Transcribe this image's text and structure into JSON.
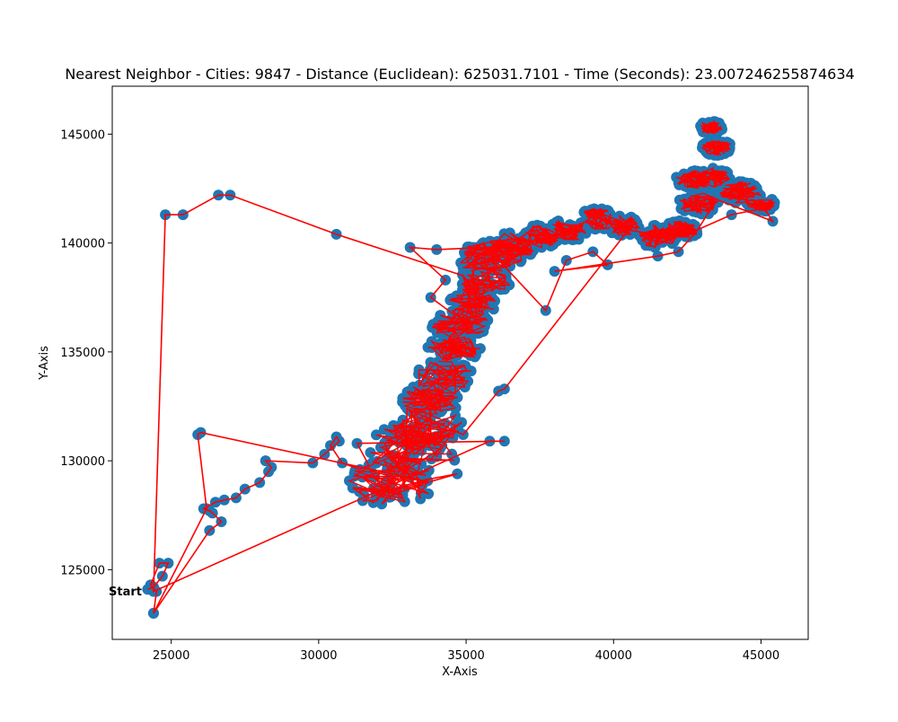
{
  "chart_data": {
    "type": "line",
    "title": "Nearest Neighbor - Cities: 9847 - Distance (Euclidean): 625031.7101 - Time (Seconds): 23.007246255874634",
    "xlabel": "X-Axis",
    "ylabel": "Y-Axis",
    "xlim": [
      23000,
      46600
    ],
    "ylim": [
      121800,
      147200
    ],
    "xticks": [
      25000,
      30000,
      35000,
      40000,
      45000
    ],
    "yticks": [
      125000,
      130000,
      135000,
      140000,
      145000
    ],
    "grid": false,
    "legend": "none",
    "annotations": [
      {
        "text": "Start",
        "x": 24100,
        "y": 123900
      }
    ],
    "colors": {
      "points": "#1f77b4",
      "route": "#ff0000",
      "axes": "#000000",
      "background": "#ffffff"
    },
    "series": [
      {
        "role": "route-outliers",
        "x": [
          24200,
          24400,
          24700,
          24900,
          24600,
          24300,
          24500,
          24400,
          26300,
          26700,
          26400,
          26300,
          26100,
          26500,
          26800,
          27200,
          27500,
          28000,
          28300,
          28400,
          28200,
          29800,
          30200,
          30700,
          30600,
          30400,
          30800,
          31400,
          31700,
          31300,
          36300,
          35800,
          24400,
          24800,
          25400,
          26600,
          27000,
          30600,
          34900,
          35300,
          34600,
          33800,
          34300,
          33100,
          34000,
          35700,
          37700,
          38400,
          39300,
          39800,
          38000,
          41500,
          42200,
          42800,
          43500,
          45400,
          45100,
          44000,
          42500,
          41800,
          40500,
          36300,
          36100,
          34900,
          33000,
          32900,
          34700,
          33500,
          26000,
          25900,
          26200,
          24400
        ],
        "y": [
          124100,
          124200,
          124700,
          125300,
          125300,
          124300,
          124000,
          123000,
          126800,
          127200,
          127600,
          127700,
          127800,
          128100,
          128200,
          128300,
          128700,
          129000,
          129500,
          129700,
          130000,
          129900,
          130300,
          130900,
          131100,
          130700,
          129900,
          129600,
          129800,
          130800,
          130900,
          130900,
          124000,
          141300,
          141300,
          142200,
          142200,
          140400,
          138500,
          136300,
          136700,
          137500,
          138300,
          139800,
          139700,
          139800,
          136900,
          139200,
          139600,
          139000,
          138700,
          139400,
          139600,
          140500,
          142000,
          141000,
          141600,
          141300,
          140400,
          140300,
          140600,
          133300,
          133200,
          131200,
          132400,
          128700,
          129400,
          129100,
          131300,
          131200,
          127800,
          123000
        ]
      }
    ],
    "point_cloud": [
      {
        "role": "main-cluster",
        "count_note": "dense tour region",
        "x_range": [
          31000,
          45500
        ],
        "y_range": [
          128500,
          146000
        ]
      }
    ]
  }
}
